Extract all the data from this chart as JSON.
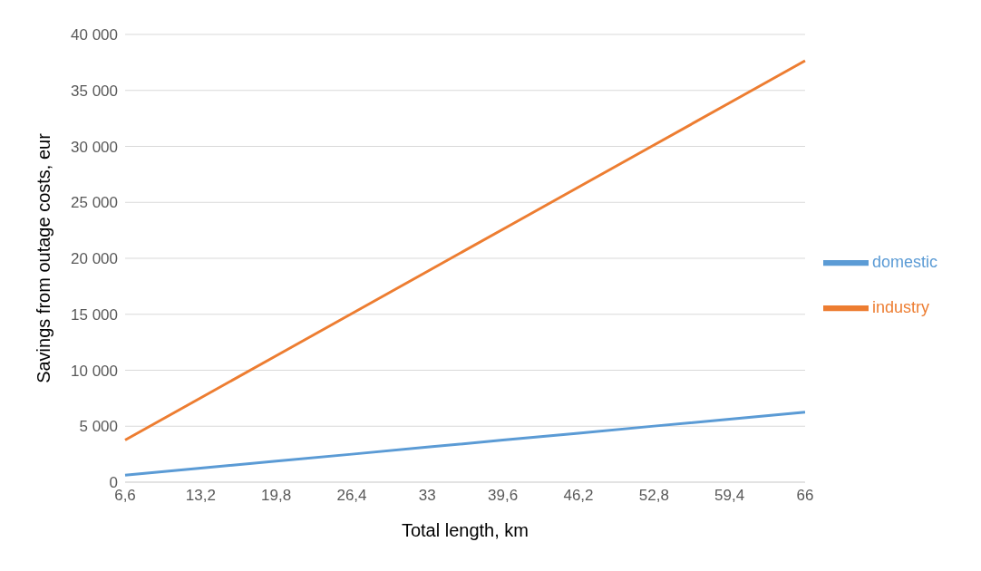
{
  "chart_data": {
    "type": "line",
    "xlabel": "Total length, km",
    "ylabel": "Savings from outage costs, eur",
    "categories": [
      "6,6",
      "13,2",
      "19,8",
      "26,4",
      "33",
      "39,6",
      "46,2",
      "52,8",
      "59,4",
      "66"
    ],
    "series": [
      {
        "name": "domestic",
        "color": "#5b9bd5",
        "values": [
          630,
          1250,
          1880,
          2500,
          3130,
          3760,
          4380,
          5010,
          5630,
          6260
        ]
      },
      {
        "name": "industry",
        "color": "#ed7d31",
        "values": [
          3770,
          7530,
          11300,
          15060,
          18830,
          22590,
          26360,
          30120,
          33890,
          37650
        ]
      }
    ],
    "ylim": [
      0,
      40000
    ],
    "yticks": [
      0,
      {
        "value": 5000,
        "label": "5 000"
      },
      {
        "value": 10000,
        "label": "10 000"
      },
      {
        "value": 15000,
        "label": "15 000"
      },
      {
        "value": 20000,
        "label": "20 000"
      },
      {
        "value": 25000,
        "label": "25 000"
      },
      {
        "value": 30000,
        "label": "30 000"
      },
      {
        "value": 35000,
        "label": "35 000"
      },
      {
        "value": 40000,
        "label": "40 000"
      }
    ],
    "grid": "y",
    "legend": "right",
    "marker": "none",
    "line_style": "solid"
  }
}
